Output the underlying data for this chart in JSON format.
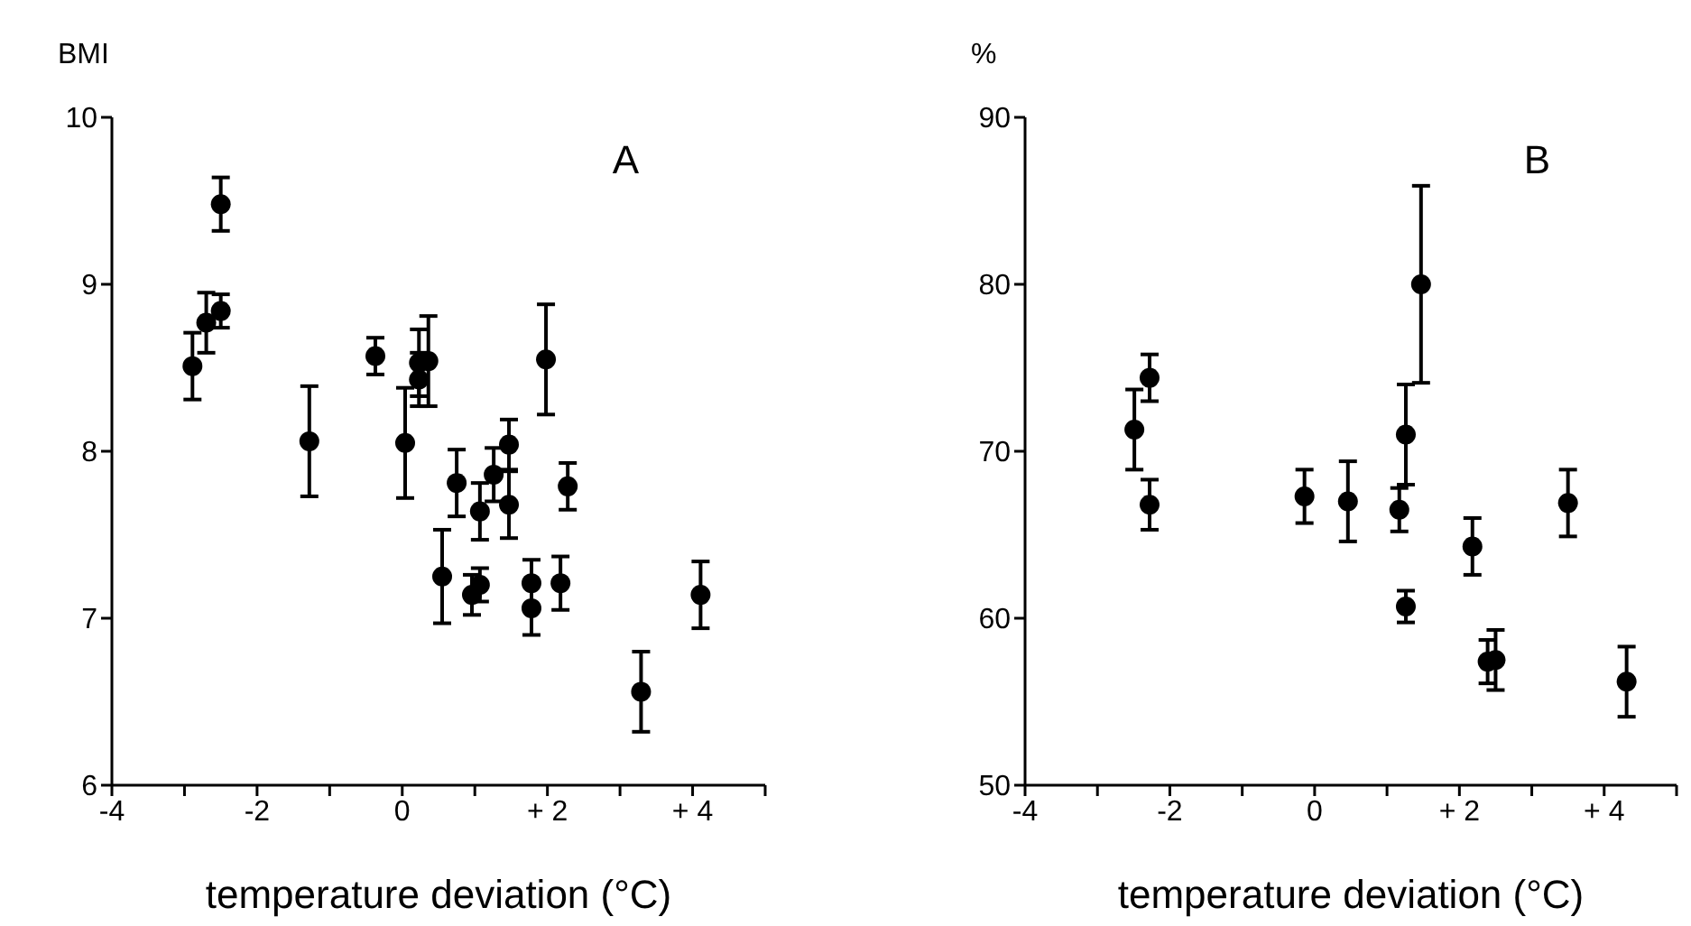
{
  "chart_data": [
    {
      "type": "scatter",
      "ylabel": "BMI",
      "xlabel": "temperature deviation (°C)",
      "annotations": [
        "A"
      ],
      "marker": "circle",
      "color": "#000000",
      "x": [
        -2.5,
        -2.7,
        -2.5,
        -2.89,
        -1.28,
        -0.37,
        0.04,
        0.23,
        0.36,
        0.23,
        0.75,
        0.55,
        0.96,
        1.07,
        1.07,
        1.26,
        1.47,
        1.47,
        1.78,
        1.78,
        1.98,
        2.18,
        2.28,
        3.29,
        4.11
      ],
      "values": [
        9.48,
        8.77,
        8.84,
        8.51,
        8.06,
        8.57,
        8.05,
        8.53,
        8.54,
        8.43,
        7.81,
        7.25,
        7.14,
        7.2,
        7.64,
        7.86,
        8.04,
        7.68,
        7.21,
        7.06,
        8.55,
        7.21,
        7.79,
        6.56,
        7.14
      ],
      "errors": [
        0.16,
        0.18,
        0.1,
        0.2,
        0.33,
        0.11,
        0.33,
        0.2,
        0.27,
        0.16,
        0.2,
        0.28,
        0.12,
        0.1,
        0.17,
        0.16,
        0.15,
        0.2,
        0.14,
        0.16,
        0.33,
        0.16,
        0.14,
        0.24,
        0.2
      ],
      "xlim": [
        -4,
        5
      ],
      "xticks": [
        -4,
        {
          "value": -3,
          "label": null
        },
        -2,
        {
          "value": -1,
          "label": null
        },
        0,
        {
          "value": 1,
          "label": null
        },
        {
          "value": 2,
          "label": "+ 2"
        },
        {
          "value": 3,
          "label": null
        },
        {
          "value": 4,
          "label": "+ 4"
        },
        {
          "value": 5,
          "label": null
        }
      ],
      "ylim": [
        6,
        10
      ],
      "yticks": [
        6,
        7,
        8,
        9,
        10
      ]
    },
    {
      "type": "scatter",
      "ylabel": "%",
      "xlabel": "temperature deviation (°C)",
      "annotations": [
        "B"
      ],
      "marker": "circle",
      "color": "#000000",
      "x": [
        -2.28,
        -2.49,
        -2.28,
        -0.14,
        0.46,
        1.17,
        1.26,
        1.26,
        1.47,
        2.18,
        2.39,
        2.5,
        3.5,
        4.31
      ],
      "values": [
        74.4,
        71.3,
        66.8,
        67.3,
        67.0,
        66.5,
        71.0,
        60.7,
        80.0,
        64.3,
        57.4,
        57.5,
        66.9,
        56.2
      ],
      "errors": [
        1.4,
        2.4,
        1.5,
        1.6,
        2.4,
        1.3,
        3,
        0.95,
        5.9,
        1.7,
        1.3,
        1.8,
        2,
        2.1
      ],
      "xlim": [
        -4,
        5
      ],
      "xticks": [
        -4,
        {
          "value": -3,
          "label": null
        },
        -2,
        {
          "value": -1,
          "label": null
        },
        0,
        {
          "value": 1,
          "label": null
        },
        {
          "value": 2,
          "label": "+ 2"
        },
        {
          "value": 3,
          "label": null
        },
        {
          "value": 4,
          "label": "+ 4"
        },
        {
          "value": 5,
          "label": null
        }
      ],
      "ylim": [
        50,
        90
      ],
      "yticks": [
        50,
        60,
        70,
        80,
        90
      ]
    }
  ]
}
